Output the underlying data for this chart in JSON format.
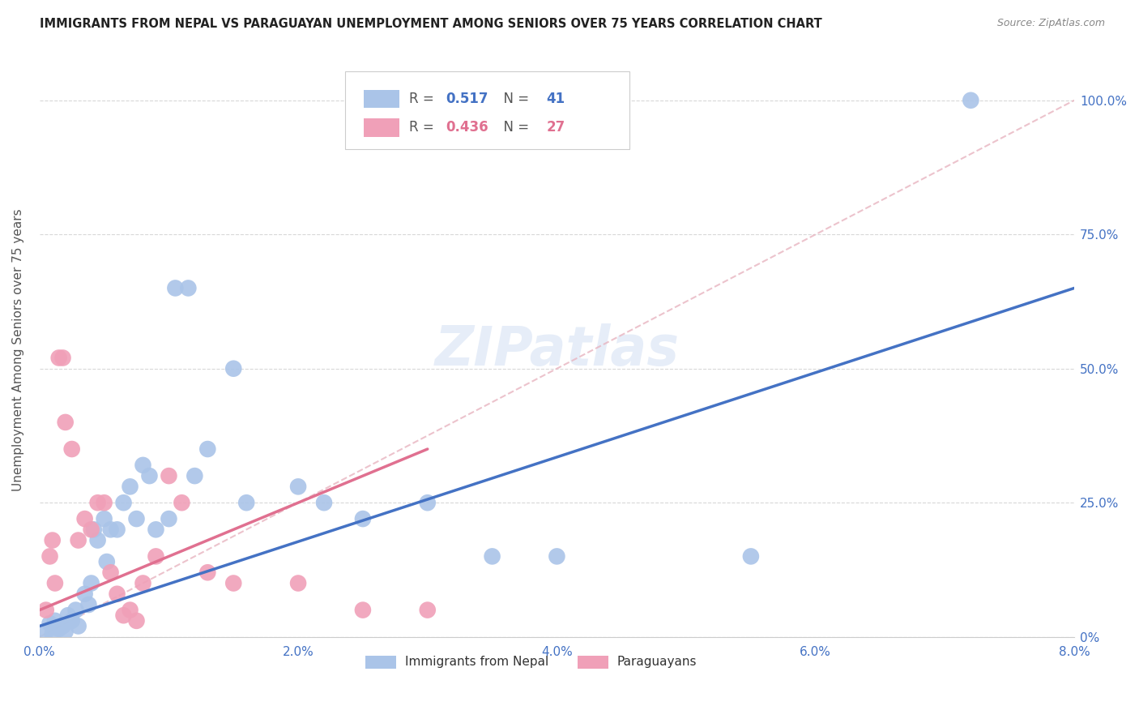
{
  "title": "IMMIGRANTS FROM NEPAL VS PARAGUAYAN UNEMPLOYMENT AMONG SENIORS OVER 75 YEARS CORRELATION CHART",
  "source": "Source: ZipAtlas.com",
  "xlabel_ticks": [
    "0.0%",
    "2.0%",
    "4.0%",
    "6.0%",
    "8.0%"
  ],
  "xlabel_vals": [
    0.0,
    2.0,
    4.0,
    6.0,
    8.0
  ],
  "ylabel_ticks": [
    "0%",
    "25.0%",
    "50.0%",
    "75.0%",
    "100.0%"
  ],
  "ylabel_vals": [
    0,
    25,
    50,
    75,
    100
  ],
  "ylabel": "Unemployment Among Seniors over 75 years",
  "xlim": [
    0.0,
    8.0
  ],
  "ylim": [
    0.0,
    107.0
  ],
  "watermark": "ZIPatlas",
  "legend_nepal_r": "0.517",
  "legend_nepal_n": "41",
  "legend_para_r": "0.436",
  "legend_para_n": "27",
  "nepal_color": "#aac4e8",
  "para_color": "#f0a0b8",
  "nepal_line_color": "#4472c4",
  "para_line_color": "#e07090",
  "nepal_scatter": [
    [
      0.05,
      1.0
    ],
    [
      0.08,
      2.5
    ],
    [
      0.1,
      0.5
    ],
    [
      0.12,
      3.0
    ],
    [
      0.15,
      1.5
    ],
    [
      0.18,
      2.0
    ],
    [
      0.2,
      1.0
    ],
    [
      0.22,
      4.0
    ],
    [
      0.25,
      3.0
    ],
    [
      0.28,
      5.0
    ],
    [
      0.3,
      2.0
    ],
    [
      0.35,
      8.0
    ],
    [
      0.38,
      6.0
    ],
    [
      0.4,
      10.0
    ],
    [
      0.42,
      20.0
    ],
    [
      0.45,
      18.0
    ],
    [
      0.5,
      22.0
    ],
    [
      0.52,
      14.0
    ],
    [
      0.55,
      20.0
    ],
    [
      0.6,
      20.0
    ],
    [
      0.65,
      25.0
    ],
    [
      0.7,
      28.0
    ],
    [
      0.75,
      22.0
    ],
    [
      0.8,
      32.0
    ],
    [
      0.85,
      30.0
    ],
    [
      0.9,
      20.0
    ],
    [
      1.0,
      22.0
    ],
    [
      1.05,
      65.0
    ],
    [
      1.15,
      65.0
    ],
    [
      1.2,
      30.0
    ],
    [
      1.3,
      35.0
    ],
    [
      1.5,
      50.0
    ],
    [
      1.6,
      25.0
    ],
    [
      2.0,
      28.0
    ],
    [
      2.2,
      25.0
    ],
    [
      2.5,
      22.0
    ],
    [
      3.0,
      25.0
    ],
    [
      3.5,
      15.0
    ],
    [
      4.0,
      15.0
    ],
    [
      5.5,
      15.0
    ],
    [
      7.2,
      100.0
    ]
  ],
  "para_scatter": [
    [
      0.05,
      5.0
    ],
    [
      0.08,
      15.0
    ],
    [
      0.1,
      18.0
    ],
    [
      0.12,
      10.0
    ],
    [
      0.15,
      52.0
    ],
    [
      0.18,
      52.0
    ],
    [
      0.2,
      40.0
    ],
    [
      0.25,
      35.0
    ],
    [
      0.3,
      18.0
    ],
    [
      0.35,
      22.0
    ],
    [
      0.4,
      20.0
    ],
    [
      0.45,
      25.0
    ],
    [
      0.5,
      25.0
    ],
    [
      0.55,
      12.0
    ],
    [
      0.6,
      8.0
    ],
    [
      0.65,
      4.0
    ],
    [
      0.7,
      5.0
    ],
    [
      0.75,
      3.0
    ],
    [
      0.8,
      10.0
    ],
    [
      0.9,
      15.0
    ],
    [
      1.0,
      30.0
    ],
    [
      1.1,
      25.0
    ],
    [
      1.3,
      12.0
    ],
    [
      1.5,
      10.0
    ],
    [
      2.0,
      10.0
    ],
    [
      2.5,
      5.0
    ],
    [
      3.0,
      5.0
    ]
  ],
  "nepal_trendline_x": [
    0.0,
    8.0
  ],
  "nepal_trendline_y": [
    2.0,
    65.0
  ],
  "para_trendline_x": [
    0.0,
    3.0
  ],
  "para_trendline_y": [
    5.0,
    35.0
  ],
  "ref_line_x": [
    0.0,
    8.0
  ],
  "ref_line_y": [
    0.0,
    100.0
  ]
}
